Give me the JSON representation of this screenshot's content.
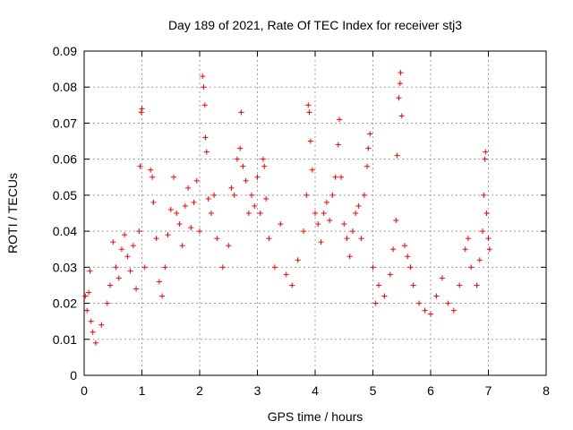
{
  "chart_data": {
    "type": "scatter",
    "title": "Day 189 of 2021, Rate Of TEC Index for receiver stj3",
    "xlabel": "GPS time / hours",
    "ylabel": "ROTI / TECUs",
    "xlim": [
      0,
      8
    ],
    "ylim": [
      0,
      0.09
    ],
    "xticks": [
      "0",
      "1",
      "2",
      "3",
      "4",
      "5",
      "6",
      "7",
      "8"
    ],
    "yticks": [
      "0",
      "0.01",
      "0.02",
      "0.03",
      "0.04",
      "0.05",
      "0.06",
      "0.07",
      "0.08",
      "0.09"
    ],
    "grid": true,
    "marker": "+",
    "color": "#ff0000",
    "series": [
      {
        "name": "ROTI",
        "points": [
          [
            0.02,
            0.022
          ],
          [
            0.05,
            0.018
          ],
          [
            0.08,
            0.023
          ],
          [
            0.1,
            0.029
          ],
          [
            0.12,
            0.015
          ],
          [
            0.15,
            0.012
          ],
          [
            0.2,
            0.009
          ],
          [
            0.3,
            0.014
          ],
          [
            0.4,
            0.02
          ],
          [
            0.45,
            0.025
          ],
          [
            0.5,
            0.037
          ],
          [
            0.55,
            0.03
          ],
          [
            0.6,
            0.027
          ],
          [
            0.65,
            0.035
          ],
          [
            0.7,
            0.039
          ],
          [
            0.75,
            0.033
          ],
          [
            0.8,
            0.029
          ],
          [
            0.85,
            0.036
          ],
          [
            0.9,
            0.024
          ],
          [
            0.95,
            0.04
          ],
          [
            0.97,
            0.058
          ],
          [
            0.99,
            0.073
          ],
          [
            1.0,
            0.074
          ],
          [
            1.05,
            0.03
          ],
          [
            1.15,
            0.057
          ],
          [
            1.18,
            0.055
          ],
          [
            1.2,
            0.048
          ],
          [
            1.25,
            0.038
          ],
          [
            1.3,
            0.026
          ],
          [
            1.35,
            0.022
          ],
          [
            1.4,
            0.03
          ],
          [
            1.45,
            0.039
          ],
          [
            1.5,
            0.046
          ],
          [
            1.55,
            0.055
          ],
          [
            1.6,
            0.045
          ],
          [
            1.65,
            0.042
          ],
          [
            1.7,
            0.036
          ],
          [
            1.75,
            0.047
          ],
          [
            1.8,
            0.052
          ],
          [
            1.85,
            0.041
          ],
          [
            1.9,
            0.048
          ],
          [
            1.95,
            0.054
          ],
          [
            2.0,
            0.04
          ],
          [
            2.05,
            0.083
          ],
          [
            2.07,
            0.08
          ],
          [
            2.09,
            0.075
          ],
          [
            2.1,
            0.066
          ],
          [
            2.12,
            0.062
          ],
          [
            2.15,
            0.049
          ],
          [
            2.2,
            0.045
          ],
          [
            2.25,
            0.05
          ],
          [
            2.3,
            0.038
          ],
          [
            2.4,
            0.03
          ],
          [
            2.5,
            0.036
          ],
          [
            2.55,
            0.052
          ],
          [
            2.6,
            0.05
          ],
          [
            2.65,
            0.06
          ],
          [
            2.7,
            0.063
          ],
          [
            2.72,
            0.073
          ],
          [
            2.75,
            0.058
          ],
          [
            2.8,
            0.054
          ],
          [
            2.85,
            0.045
          ],
          [
            2.9,
            0.05
          ],
          [
            2.95,
            0.047
          ],
          [
            3.0,
            0.055
          ],
          [
            3.05,
            0.045
          ],
          [
            3.1,
            0.06
          ],
          [
            3.12,
            0.058
          ],
          [
            3.15,
            0.049
          ],
          [
            3.2,
            0.038
          ],
          [
            3.3,
            0.03
          ],
          [
            3.4,
            0.042
          ],
          [
            3.5,
            0.028
          ],
          [
            3.6,
            0.025
          ],
          [
            3.7,
            0.032
          ],
          [
            3.8,
            0.04
          ],
          [
            3.85,
            0.05
          ],
          [
            3.88,
            0.075
          ],
          [
            3.9,
            0.073
          ],
          [
            3.92,
            0.065
          ],
          [
            3.95,
            0.057
          ],
          [
            4.0,
            0.045
          ],
          [
            4.05,
            0.042
          ],
          [
            4.1,
            0.037
          ],
          [
            4.15,
            0.045
          ],
          [
            4.2,
            0.048
          ],
          [
            4.25,
            0.043
          ],
          [
            4.3,
            0.05
          ],
          [
            4.35,
            0.055
          ],
          [
            4.4,
            0.064
          ],
          [
            4.42,
            0.071
          ],
          [
            4.45,
            0.055
          ],
          [
            4.5,
            0.042
          ],
          [
            4.55,
            0.038
          ],
          [
            4.6,
            0.033
          ],
          [
            4.65,
            0.04
          ],
          [
            4.7,
            0.045
          ],
          [
            4.75,
            0.047
          ],
          [
            4.8,
            0.038
          ],
          [
            4.85,
            0.05
          ],
          [
            4.9,
            0.058
          ],
          [
            4.92,
            0.063
          ],
          [
            4.95,
            0.067
          ],
          [
            5.0,
            0.03
          ],
          [
            5.05,
            0.02
          ],
          [
            5.1,
            0.025
          ],
          [
            5.2,
            0.022
          ],
          [
            5.3,
            0.028
          ],
          [
            5.35,
            0.035
          ],
          [
            5.4,
            0.043
          ],
          [
            5.42,
            0.061
          ],
          [
            5.45,
            0.077
          ],
          [
            5.47,
            0.081
          ],
          [
            5.48,
            0.084
          ],
          [
            5.5,
            0.072
          ],
          [
            5.55,
            0.036
          ],
          [
            5.6,
            0.033
          ],
          [
            5.65,
            0.03
          ],
          [
            5.7,
            0.025
          ],
          [
            5.8,
            0.02
          ],
          [
            5.9,
            0.018
          ],
          [
            6.0,
            0.017
          ],
          [
            6.1,
            0.022
          ],
          [
            6.2,
            0.027
          ],
          [
            6.3,
            0.02
          ],
          [
            6.4,
            0.018
          ],
          [
            6.5,
            0.025
          ],
          [
            6.6,
            0.035
          ],
          [
            6.65,
            0.038
          ],
          [
            6.7,
            0.03
          ],
          [
            6.8,
            0.025
          ],
          [
            6.85,
            0.032
          ],
          [
            6.9,
            0.04
          ],
          [
            6.92,
            0.05
          ],
          [
            6.94,
            0.06
          ],
          [
            6.95,
            0.062
          ],
          [
            6.97,
            0.045
          ],
          [
            7.0,
            0.038
          ],
          [
            7.02,
            0.035
          ]
        ]
      }
    ]
  }
}
